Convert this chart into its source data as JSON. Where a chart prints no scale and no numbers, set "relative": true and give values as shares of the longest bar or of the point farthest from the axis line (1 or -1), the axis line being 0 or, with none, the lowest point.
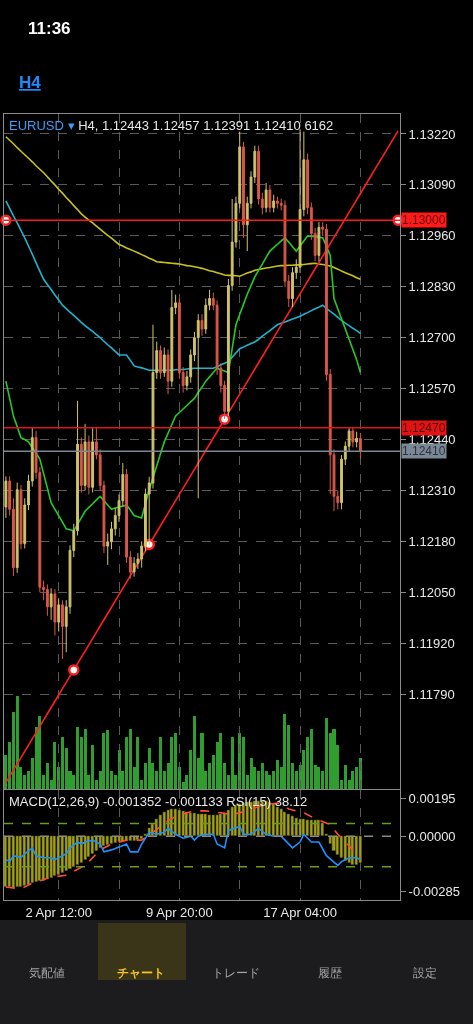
{
  "chart_data": [
    {
      "type": "candlestick",
      "title": "EURUSD ▾",
      "subtitle": "H4, 1.12443 1.12457 1.12391 1.12410 6162",
      "annotations": [
        "11:36",
        "H4",
        "気配値",
        "チャート",
        "トレード",
        "履歴",
        "設定"
      ],
      "categories": [
        null,
        null,
        null,
        null,
        null,
        null,
        null,
        null,
        null,
        null,
        null,
        null,
        null,
        null,
        null,
        null,
        null,
        null,
        null,
        null,
        null,
        null,
        null,
        null,
        null,
        null,
        null,
        null,
        null,
        null,
        null,
        null,
        null,
        null,
        null,
        null,
        null,
        null,
        null,
        null,
        null,
        null,
        null,
        null,
        null,
        null,
        null,
        null,
        null,
        null,
        null,
        null,
        null,
        null,
        null,
        null,
        null,
        null,
        null,
        null,
        null,
        null,
        null,
        null,
        null,
        null,
        null,
        null,
        null,
        null,
        null,
        null,
        null,
        null,
        null,
        null,
        null,
        null,
        null,
        null,
        null,
        null,
        null,
        null,
        null,
        null,
        null,
        null,
        null,
        null,
        null,
        null,
        null,
        null,
        null,
        null,
        null,
        null,
        null,
        null,
        null,
        null,
        null,
        null,
        null
      ],
      "ylim": [
        1.11548,
        1.13271
      ],
      "yticks": [
        {
          "value": 1.1322,
          "label": "1.13220"
        },
        {
          "value": 1.1309,
          "label": "1.13090"
        },
        {
          "value": 1.1296,
          "label": "1.12960"
        },
        {
          "value": 1.1283,
          "label": "1.12830"
        },
        {
          "value": 1.127,
          "label": "1.12700"
        },
        {
          "value": 1.1257,
          "label": "1.12570"
        },
        {
          "value": 1.1244,
          "label": "1.12440"
        },
        {
          "value": 1.1231,
          "label": "1.12310"
        },
        {
          "value": 1.1218,
          "label": "1.12180"
        },
        {
          "value": 1.1205,
          "label": "1.12050"
        },
        {
          "value": 1.1192,
          "label": "1.11920"
        },
        {
          "value": 1.1179,
          "label": "1.11790"
        }
      ],
      "grid": true,
      "tick_labels": "y",
      "colors": [
        "#cfc36b",
        "#d9574a",
        "#d9574a",
        "#cfc36b",
        "#d9574a",
        "#cfc36b",
        "#cfc36b",
        "#cfc36b",
        "#d9574a",
        "#d9574a",
        "#d9574a",
        "#d9574a",
        "#cfc36b",
        "#d9574a",
        "#cfc36b",
        "#d9574a",
        "#cfc36b",
        "#cfc36b",
        "#cfc36b",
        "#cfc36b",
        "#d9574a",
        "#cfc36b",
        "#d9574a",
        "#cfc36b",
        "#d9574a",
        "#d9574a",
        "#d9574a",
        "#cfc36b",
        "#cfc36b",
        "#cfc36b",
        "#cfc36b",
        "#cfc36b",
        "#d9574a",
        "#d9574a",
        "#cfc36b",
        "#cfc36b",
        "#cfc36b",
        "#cfc36b",
        "#cfc36b",
        "#cfc36b",
        "#cfc36b",
        "#d9574a",
        "#cfc36b",
        "#d9574a",
        "#cfc36b",
        "#cfc36b",
        "#d9574a",
        "#d9574a",
        "#cfc36b",
        "#cfc36b",
        "#cfc36b",
        "#cfc36b",
        "#d9574a",
        "#cfc36b",
        "#cfc36b",
        "#d9574a",
        "#d9574a",
        "#d9574a",
        "#d9574a",
        "#cfc36b",
        "#cfc36b",
        "#cfc36b",
        "#cfc36b",
        "#d9574a",
        "#cfc36b",
        "#cfc36b",
        "#cfc36b",
        "#d9574a",
        "#d9574a",
        "#cfc36b",
        "#d9574a",
        "#cfc36b",
        "#d9574a",
        "#d9574a",
        "#d9574a",
        "#d9574a",
        "#cfc36b",
        "#cfc36b",
        "#cfc36b",
        "#cfc36b",
        "#d9574a",
        "#d9574a",
        "#d9574a",
        "#cfc36b",
        "#d9574a",
        "#d9574a",
        "#d9574a",
        "#d9574a",
        "#d9574a",
        "#cfc36b",
        "#cfc36b",
        "#cfc36b",
        "#d9574a",
        "#cfc36b",
        "#d9574a",
        null,
        null,
        null,
        null,
        null,
        null,
        null,
        null,
        null,
        null
      ],
      "ohlc": [
        [
          1.12268,
          1.12346,
          1.1224,
          1.12334
        ],
        [
          1.12334,
          1.12346,
          1.12246,
          1.12262
        ],
        [
          1.12262,
          1.1229,
          1.12092,
          1.12113
        ],
        [
          1.12113,
          1.1233,
          1.121,
          1.12312
        ],
        [
          1.12312,
          1.12324,
          1.1216,
          1.12174
        ],
        [
          1.12174,
          1.1229,
          1.12162,
          1.12273
        ],
        [
          1.12273,
          1.1235,
          1.1226,
          1.12334
        ],
        [
          1.12334,
          1.1247,
          1.1232,
          1.12445
        ],
        [
          1.12445,
          1.12462,
          1.1234,
          1.12356
        ],
        [
          1.12356,
          1.1237,
          1.1205,
          1.12063
        ],
        [
          1.12063,
          1.1208,
          1.1203,
          1.12057
        ],
        [
          1.12057,
          1.1207,
          1.1199,
          1.12013
        ],
        [
          1.12013,
          1.1206,
          1.1198,
          1.12046
        ],
        [
          1.12046,
          1.12058,
          1.1194,
          1.11974
        ],
        [
          1.11974,
          1.12035,
          1.1195,
          1.12018
        ],
        [
          1.12018,
          1.1203,
          1.1188,
          1.11963
        ],
        [
          1.11963,
          1.1203,
          1.11897,
          1.12013
        ],
        [
          1.12013,
          1.1217,
          1.11995,
          1.12157
        ],
        [
          1.12157,
          1.12225,
          1.1214,
          1.12207
        ],
        [
          1.12207,
          1.12539,
          1.12195,
          1.12428
        ],
        [
          1.12428,
          1.12445,
          1.12305,
          1.12323
        ],
        [
          1.12323,
          1.1248,
          1.1231,
          1.12434
        ],
        [
          1.12434,
          1.1245,
          1.123,
          1.12318
        ],
        [
          1.12318,
          1.1247,
          1.12305,
          1.12434
        ],
        [
          1.12434,
          1.1247,
          1.1239,
          1.12401
        ],
        [
          1.12401,
          1.12415,
          1.1231,
          1.12323
        ],
        [
          1.12323,
          1.12335,
          1.1215,
          1.12168
        ],
        [
          1.12168,
          1.122,
          1.1212,
          1.12179
        ],
        [
          1.12179,
          1.1223,
          1.1216,
          1.12212
        ],
        [
          1.12212,
          1.12265,
          1.12195,
          1.12246
        ],
        [
          1.12246,
          1.123,
          1.1223,
          1.12284
        ],
        [
          1.12284,
          1.1238,
          1.1227,
          1.12351
        ],
        [
          1.12351,
          1.12365,
          1.12125,
          1.1214
        ],
        [
          1.1214,
          1.12155,
          1.12085,
          1.12102
        ],
        [
          1.12102,
          1.1214,
          1.1209,
          1.12124
        ],
        [
          1.12124,
          1.1215,
          1.1211,
          1.12135
        ],
        [
          1.12135,
          1.1218,
          1.12113,
          1.12168
        ],
        [
          1.12168,
          1.12315,
          1.12155,
          1.12301
        ],
        [
          1.12301,
          1.12345,
          1.12171,
          1.12329
        ],
        [
          1.12329,
          1.12733,
          1.12315,
          1.12611
        ],
        [
          1.12611,
          1.1269,
          1.12595,
          1.12667
        ],
        [
          1.12667,
          1.1268,
          1.12595,
          1.12611
        ],
        [
          1.12611,
          1.12675,
          1.126,
          1.12656
        ],
        [
          1.12656,
          1.1267,
          1.12556,
          1.12589
        ],
        [
          1.12589,
          1.12822,
          1.12575,
          1.12777
        ],
        [
          1.12777,
          1.1281,
          1.1276,
          1.12789
        ],
        [
          1.12789,
          1.128,
          1.12595,
          1.12611
        ],
        [
          1.12611,
          1.12625,
          1.1256,
          1.12578
        ],
        [
          1.12578,
          1.12615,
          1.12565,
          1.126
        ],
        [
          1.126,
          1.1267,
          1.12585,
          1.12656
        ],
        [
          1.12656,
          1.12715,
          1.1264,
          1.127
        ],
        [
          1.127,
          1.1276,
          1.1229,
          1.12744
        ],
        [
          1.12744,
          1.1276,
          1.12705,
          1.12722
        ],
        [
          1.12722,
          1.128,
          1.1271,
          1.12783
        ],
        [
          1.12783,
          1.12822,
          1.1277,
          1.128
        ],
        [
          1.128,
          1.12815,
          1.1277,
          1.12783
        ],
        [
          1.12783,
          1.12795,
          1.12605,
          1.12622
        ],
        [
          1.12622,
          1.12635,
          1.1256,
          1.12578
        ],
        [
          1.12578,
          1.1259,
          1.12493,
          1.12512
        ],
        [
          1.12512,
          1.1285,
          1.125,
          1.12833
        ],
        [
          1.12833,
          1.13054,
          1.1282,
          1.12944
        ],
        [
          1.12944,
          1.1306,
          1.1293,
          1.13043
        ],
        [
          1.13043,
          1.13226,
          1.1303,
          1.13187
        ],
        [
          1.13187,
          1.132,
          1.12955,
          1.12988
        ],
        [
          1.12988,
          1.1306,
          1.12921,
          1.13043
        ],
        [
          1.13043,
          1.13125,
          1.1303,
          1.1311
        ],
        [
          1.1311,
          1.1319,
          1.13095,
          1.13176
        ],
        [
          1.13176,
          1.1319,
          1.1304,
          1.13054
        ],
        [
          1.13054,
          1.1307,
          1.13015,
          1.13032
        ],
        [
          1.13032,
          1.13095,
          1.1302,
          1.13077
        ],
        [
          1.13077,
          1.1309,
          1.1302,
          1.13032
        ],
        [
          1.13032,
          1.13065,
          1.1302,
          1.13049
        ],
        [
          1.13049,
          1.1306,
          1.1303,
          1.13043
        ],
        [
          1.13043,
          1.13055,
          1.13025,
          1.13038
        ],
        [
          1.13038,
          1.1305,
          1.1283,
          1.12844
        ],
        [
          1.12844,
          1.1286,
          1.12778,
          1.128
        ],
        [
          1.128,
          1.1288,
          1.12778,
          1.12866
        ],
        [
          1.12866,
          1.129,
          1.1285,
          1.1288
        ],
        [
          1.1288,
          1.13232,
          1.12865,
          1.13027
        ],
        [
          1.13027,
          1.13226,
          1.1301,
          1.13154
        ],
        [
          1.13154,
          1.1317,
          1.13015,
          1.13032
        ],
        [
          1.13032,
          1.13045,
          1.1295,
          1.12966
        ],
        [
          1.12966,
          1.1298,
          1.12895,
          1.1291
        ],
        [
          1.1291,
          1.12995,
          1.12895,
          1.12982
        ],
        [
          1.12982,
          1.12995,
          1.1296,
          1.12977
        ],
        [
          1.12977,
          1.1299,
          1.1259,
          1.12606
        ],
        [
          1.12606,
          1.1262,
          1.12301,
          1.12401
        ],
        [
          1.12401,
          1.12415,
          1.12257,
          1.12295
        ],
        [
          1.12295,
          1.1231,
          1.12262,
          1.12279
        ],
        [
          1.12279,
          1.124,
          1.12262,
          1.1239
        ],
        [
          1.1239,
          1.12435,
          1.12375,
          1.12423
        ],
        [
          1.12423,
          1.12472,
          1.1241,
          1.12462
        ],
        [
          1.12462,
          1.12472,
          1.1242,
          1.12434
        ],
        [
          1.12434,
          1.1246,
          1.1242,
          1.12443
        ],
        [
          1.12443,
          1.12457,
          1.12391,
          1.1241
        ],
        null,
        null,
        null,
        null,
        null,
        null,
        null,
        null,
        null,
        null
      ],
      "series": [
        {
          "type": "line",
          "color": "#c8c21c",
          "values": [
            1.13213,
            1.13204,
            1.13195,
            1.13185,
            1.13176,
            1.13167,
            1.13158,
            1.13149,
            1.13139,
            1.1313,
            1.13121,
            1.13111,
            1.131,
            1.1309,
            1.13079,
            1.13069,
            1.13058,
            1.13048,
            1.13037,
            1.13027,
            1.13016,
            1.13008,
            1.13,
            1.12993,
            1.12985,
            1.12977,
            1.12969,
            1.12961,
            1.12954,
            1.12946,
            1.12938,
            1.12934,
            1.12929,
            1.12925,
            1.12921,
            1.12917,
            1.12912,
            1.12908,
            1.12903,
            1.12899,
            1.12894,
            1.12893,
            1.12892,
            1.12891,
            1.1289,
            1.12889,
            1.12888,
            1.12886,
            1.12884,
            1.12883,
            1.12881,
            1.12879,
            1.12877,
            1.12874,
            1.12871,
            1.12869,
            1.12866,
            1.12863,
            1.1286,
            1.12859,
            1.12859,
            1.12858,
            1.12857,
            1.12861,
            1.12865,
            1.12868,
            1.12872,
            1.12874,
            1.12876,
            1.12878,
            1.12879,
            1.12881,
            1.12883,
            1.12884,
            1.12884,
            1.12885,
            1.12885,
            1.12886,
            1.12886,
            1.12887,
            1.12888,
            1.12889,
            1.1289,
            1.12888,
            1.12887,
            1.12885,
            1.12883,
            1.12879,
            1.12875,
            1.1287,
            1.12866,
            1.12862,
            1.12858,
            1.12853,
            1.12849,
            null,
            null,
            null,
            null,
            null,
            null,
            null,
            null,
            null,
            null
          ]
        },
        {
          "type": "line",
          "color": "#1fb4cf",
          "values": [
            1.13049,
            1.1303,
            1.13011,
            1.12993,
            1.12974,
            1.12955,
            1.12934,
            1.12913,
            1.12891,
            1.1287,
            1.12849,
            1.12836,
            1.12823,
            1.12809,
            1.12796,
            1.12783,
            1.12774,
            1.12765,
            1.12757,
            1.12748,
            1.12739,
            1.12731,
            1.12723,
            1.12716,
            1.12708,
            1.127,
            1.12691,
            1.12682,
            1.12674,
            1.12665,
            1.12656,
            1.12656,
            1.12656,
            1.12642,
            1.12628,
            1.12625,
            1.12623,
            1.1262,
            1.12617,
            1.12617,
            1.12617,
            1.12617,
            1.12617,
            1.12617,
            1.12617,
            1.12618,
            1.12619,
            1.12619,
            1.1262,
            1.12621,
            1.12622,
            1.12622,
            1.12622,
            1.12622,
            1.12622,
            1.12622,
            1.12626,
            1.12631,
            1.12635,
            1.12639,
            1.1265,
            1.12661,
            1.12672,
            1.12676,
            1.12681,
            1.12685,
            1.12689,
            1.12696,
            1.12704,
            1.12711,
            1.12718,
            1.12726,
            1.12733,
            1.12737,
            1.1274,
            1.12744,
            1.12748,
            1.12751,
            1.12755,
            1.1276,
            1.12764,
            1.12769,
            1.12774,
            1.12778,
            1.12783,
            1.12775,
            1.12767,
            1.1276,
            1.12752,
            1.12744,
            1.12737,
            1.12731,
            1.12724,
            1.12718,
            1.12711,
            null,
            null,
            null,
            null,
            null,
            null,
            null,
            null,
            null,
            null
          ]
        },
        {
          "type": "line",
          "color": "#27c927",
          "values": [
            1.12589,
            1.12545,
            1.125,
            1.12473,
            1.12445,
            1.1244,
            1.12434,
            1.12419,
            1.12405,
            1.1239,
            1.12353,
            1.12316,
            1.12279,
            1.12262,
            1.12246,
            1.12229,
            1.12212,
            1.1221,
            1.12207,
            1.12224,
            1.1224,
            1.12257,
            1.12267,
            1.12276,
            1.12286,
            1.12295,
            1.12284,
            1.12273,
            1.12262,
            1.12265,
            1.12268,
            1.1227,
            1.12273,
            1.1226,
            1.12246,
            1.12243,
            1.1224,
            1.12276,
            1.12312,
            null,
            1.12373,
            1.12404,
            1.12434,
            1.12456,
            1.12478,
            1.125,
            1.12509,
            1.12518,
            1.12527,
            1.12536,
            1.12545,
            1.1256,
            1.12574,
            1.12589,
            1.126,
            1.12611,
            1.12622,
            1.12618,
            1.12615,
            1.12611,
            1.12672,
            1.12733,
            1.12759,
            1.12785,
            1.12811,
            1.12833,
            1.12855,
            1.12872,
            1.12888,
            1.12905,
            1.12921,
            1.1293,
            1.12938,
            1.12947,
            1.12955,
            1.12944,
            1.12932,
            1.12921,
            1.12934,
            1.12947,
            1.1296,
            1.12959,
            1.12958,
            1.12956,
            1.12955,
            1.12933,
            1.1291,
            1.128,
            1.12774,
            1.12748,
            1.12722,
            1.12696,
            1.1267,
            1.12644,
            1.12611,
            null,
            null,
            null,
            null,
            null,
            null,
            null,
            null,
            null,
            null
          ]
        },
        {
          "type": "line",
          "color": "#ff1f1f",
          "values": [
            1.11564,
            1.1158,
            1.11596,
            1.11612,
            1.11628,
            1.11644,
            1.1166,
            1.11676,
            1.11692,
            1.11708,
            1.11724,
            1.1174,
            1.11756,
            1.11772,
            1.11788,
            1.11804,
            1.1182,
            1.11836,
            1.11852,
            1.11868,
            1.11884,
            1.119,
            1.11916,
            1.11932,
            1.11948,
            1.11964,
            1.1198,
            1.11996,
            1.12012,
            1.12028,
            1.12044,
            1.1206,
            1.12076,
            1.12092,
            1.12108,
            1.12124,
            1.1214,
            1.12156,
            1.12172,
            1.12188,
            1.12204,
            1.1222,
            1.12236,
            1.12252,
            1.12268,
            1.12284,
            1.123,
            1.12316,
            1.12332,
            1.12348,
            1.12364,
            1.1238,
            1.12396,
            1.12412,
            1.12428,
            1.12444,
            1.1246,
            1.12476,
            1.12492,
            1.12508,
            1.12524,
            1.1254,
            1.12556,
            1.12572,
            1.12588,
            1.12604,
            1.1262,
            1.12636,
            1.12652,
            1.12668,
            1.12684,
            1.127,
            1.12716,
            1.12732,
            1.12748,
            1.12764,
            1.1278,
            1.12796,
            1.12812,
            1.12828,
            1.12844,
            1.1286,
            1.12876,
            1.12892,
            1.12908,
            1.12924,
            1.1294,
            1.12956,
            1.12972,
            1.12988,
            1.13004,
            1.1302,
            1.13036,
            1.13052,
            1.13068,
            1.13084,
            1.131,
            1.13116,
            1.13132,
            1.13148,
            1.13164,
            1.1318,
            1.13196,
            1.13212,
            1.13228
          ]
        },
        {
          "type": "scatter",
          "marker": "circle",
          "color": "#ff1f1f",
          "values": [
            1.13,
            null,
            null,
            null,
            null,
            null,
            null,
            null,
            null,
            null,
            null,
            null,
            null,
            null,
            null,
            null,
            null,
            null,
            1.11852,
            null,
            null,
            null,
            null,
            null,
            null,
            null,
            null,
            null,
            null,
            null,
            null,
            null,
            null,
            null,
            null,
            null,
            null,
            null,
            1.12172,
            null,
            null,
            null,
            null,
            null,
            null,
            null,
            null,
            null,
            null,
            null,
            null,
            null,
            null,
            null,
            null,
            null,
            null,
            null,
            1.12492,
            null,
            null,
            null,
            null,
            null,
            null,
            null,
            null,
            null,
            null,
            null,
            null,
            null,
            null,
            null,
            null,
            null,
            null,
            null,
            null,
            null,
            null,
            null,
            null,
            null,
            null,
            null,
            null,
            null,
            null,
            null,
            null,
            null,
            null,
            null,
            null,
            null,
            null,
            null,
            null,
            null,
            null,
            null,
            null,
            null,
            1.13
          ]
        }
      ],
      "ref_lines": [
        {
          "axis": "y",
          "value": 1.13,
          "label": "1.13000",
          "color": "#ff1a1a"
        },
        {
          "axis": "y",
          "value": 1.1247,
          "label": "1.12470",
          "color": "#e01414"
        },
        {
          "axis": "y",
          "value": 1.1241,
          "label": "1.12410",
          "color": "#7a8896"
        }
      ]
    },
    {
      "type": "bar",
      "relative": true,
      "tick_labels": false,
      "color": "#2f9e2f",
      "categories": [
        null,
        null,
        null,
        null,
        null,
        null,
        null,
        null,
        null,
        null,
        null,
        null,
        null,
        null,
        null,
        null,
        null,
        null,
        null,
        null,
        null,
        null,
        null,
        null,
        null,
        null,
        null,
        null,
        null,
        null,
        null,
        null,
        null,
        null,
        null,
        null,
        null,
        null,
        null,
        null,
        null,
        null,
        null,
        null,
        null,
        null,
        null,
        null,
        null,
        null,
        null,
        null,
        null,
        null,
        null,
        null,
        null,
        null,
        null,
        null,
        null,
        null,
        null,
        null,
        null,
        null,
        null,
        null,
        null,
        null,
        null,
        null,
        null,
        null,
        null,
        null,
        null,
        null,
        null,
        null,
        null,
        null,
        null,
        null,
        null,
        null,
        null,
        null,
        null,
        null,
        null,
        null,
        null,
        null,
        null,
        null,
        null,
        null,
        null,
        null,
        null,
        null,
        null,
        null,
        null
      ],
      "values": [
        0.37,
        0.51,
        0.83,
        1,
        0.24,
        0.15,
        0.19,
        0.33,
        0.67,
        0.79,
        0.15,
        0.28,
        0.1,
        0.51,
        0.24,
        0.56,
        0.44,
        0.19,
        0.15,
        0.67,
        0.56,
        0.65,
        0.15,
        0.47,
        0.1,
        0.19,
        0.6,
        0.63,
        0.19,
        0.15,
        0.42,
        0.19,
        0.56,
        0.65,
        0.24,
        0.56,
        0.1,
        0.28,
        0.44,
        0.28,
        0.19,
        0.56,
        0.19,
        0.28,
        0.56,
        0.6,
        0.24,
        0.08,
        0.15,
        0.42,
        0.79,
        0.33,
        0.6,
        0.19,
        0.28,
        0.37,
        0.51,
        0.6,
        0.28,
        0.15,
        0.56,
        0.15,
        0.6,
        0.56,
        0.15,
        0.33,
        0.24,
        0.19,
        0.28,
        0.19,
        0.15,
        0.19,
        0.31,
        0.24,
        0.81,
        0.69,
        0.28,
        0.19,
        0.26,
        0.42,
        0.56,
        0.65,
        0.26,
        0.24,
        0.19,
        0.76,
        0.6,
        0.65,
        0.47,
        0.1,
        0.26,
        0.1,
        0.19,
        0.24,
        0.33,
        null,
        null,
        null,
        null,
        null,
        null,
        null,
        null,
        null,
        null
      ]
    },
    {
      "type": "bar",
      "title": "MACD(12,26,9) -0.001352 -0.001133 RSI(15) 38.12",
      "color": "#a19f18",
      "categories": [
        null,
        null,
        null,
        null,
        null,
        null,
        null,
        null,
        null,
        null,
        null,
        null,
        null,
        null,
        "2 Apr 12:00",
        null,
        null,
        null,
        null,
        null,
        null,
        null,
        null,
        null,
        null,
        null,
        null,
        null,
        null,
        null,
        null,
        null,
        null,
        null,
        null,
        null,
        null,
        null,
        null,
        null,
        null,
        null,
        null,
        null,
        null,
        null,
        "9 Apr 20:00",
        null,
        null,
        null,
        null,
        null,
        null,
        null,
        null,
        null,
        null,
        null,
        null,
        null,
        null,
        null,
        null,
        null,
        null,
        null,
        null,
        null,
        null,
        null,
        null,
        null,
        null,
        null,
        null,
        null,
        null,
        null,
        "17 Apr 04:00",
        null,
        null,
        null,
        null,
        null,
        null,
        null,
        null,
        null,
        null,
        null,
        null,
        null,
        null,
        null,
        null,
        null,
        null,
        null,
        null,
        null,
        null,
        null,
        null,
        null,
        null
      ],
      "ylim": [
        -0.00327,
        0.00237
      ],
      "yticks": [
        0.00195,
        {
          "value": 0,
          "label": "0.00000"
        },
        -0.00285
      ],
      "grid": "x",
      "values": [
        -0.0026,
        -0.00262,
        -0.00265,
        -0.00262,
        -0.00258,
        -0.00255,
        -0.00248,
        -0.0024,
        -0.00236,
        -0.00232,
        -0.00228,
        -0.0022,
        -0.00212,
        -0.00206,
        -0.002,
        -0.0019,
        -0.00178,
        -0.00168,
        -0.0016,
        -0.00148,
        -0.00136,
        -0.00122,
        -0.00105,
        -0.0009,
        -0.00075,
        -0.00062,
        -0.00052,
        -0.00044,
        -0.00038,
        -0.00034,
        -0.0003,
        -0.00028,
        -0.00027,
        -0.00026,
        -0.00025,
        -0.0002,
        -0.00012,
        0.0001,
        0.0004,
        0.00065,
        0.0009,
        0.00108,
        0.00122,
        0.00135,
        0.00142,
        0.0014,
        0.00134,
        0.00128,
        0.00124,
        0.0012,
        0.00118,
        0.00116,
        0.00114,
        0.00112,
        0.0011,
        0.00108,
        0.00108,
        0.00112,
        0.0012,
        0.00135,
        0.0015,
        0.00158,
        0.00165,
        0.0017,
        0.00174,
        0.00177,
        0.00179,
        0.0018,
        0.0018,
        0.00179,
        0.00176,
        0.00165,
        0.0015,
        0.00138,
        0.00125,
        0.00112,
        0.00102,
        0.00095,
        0.0009,
        0.00086,
        0.00085,
        0.00084,
        0.00084,
        0.00082,
        0.0007,
        0.0001,
        -0.0004,
        -0.00075,
        -0.00098,
        -0.00112,
        -0.00125,
        -0.00135,
        -0.00145,
        -0.00148,
        -0.00135,
        null,
        null,
        null,
        null,
        null,
        null,
        null,
        null,
        null,
        null
      ],
      "series": [
        {
          "type": "line",
          "color": "#ff4b3a",
          "line_style": "dashed",
          "values": [
            -0.0026,
            null,
            null,
            null,
            -0.0027,
            null,
            null,
            -0.0024,
            null,
            null,
            null,
            null,
            -0.0021,
            null,
            null,
            null,
            -0.002,
            null,
            null,
            null,
            -0.0016,
            null,
            -0.0013,
            null,
            null,
            -0.0007,
            null,
            null,
            -0.0004,
            null,
            null,
            null,
            -0.0002,
            null,
            null,
            null,
            -0.0002,
            null,
            null,
            0.0002,
            null,
            null,
            null,
            0.0008,
            null,
            null,
            0.0011,
            null,
            null,
            null,
            0.0013,
            null,
            null,
            0.0013,
            null,
            null,
            null,
            0.0012,
            null,
            null,
            0.0011,
            null,
            null,
            null,
            0.0013,
            null,
            null,
            null,
            0.0016,
            null,
            null,
            null,
            0.0017,
            null,
            null,
            0.0014,
            null,
            null,
            null,
            0.0012,
            null,
            null,
            0.0009,
            null,
            null,
            null,
            0.0006,
            null,
            0.0001,
            null,
            null,
            -0.0005,
            null,
            null,
            -0.0011,
            null,
            null,
            null,
            null,
            null,
            null,
            null,
            null,
            null,
            null
          ]
        },
        {
          "type": "line",
          "color": "#1e90ff",
          "values": [
            -0.0012,
            -0.0013,
            -0.001,
            null,
            -0.0011,
            -0.0009,
            null,
            -0.0006,
            -0.001,
            null,
            -0.0011,
            null,
            -0.0011,
            -0.0012,
            -0.0011,
            null,
            -0.0009,
            -0.0006,
            null,
            -0.0003,
            -0.0004,
            -0.0003,
            null,
            -0.0002,
            null,
            -0.0004,
            -0.0008,
            null,
            -0.0007,
            null,
            null,
            null,
            -0.0004,
            -0.0008,
            null,
            -0.0008,
            -0.0004,
            null,
            0.0002,
            null,
            0.0001,
            null,
            0.0002,
            0.0004,
            null,
            0.0001,
            null,
            -0.0001,
            null,
            0,
            -0.0002,
            0,
            null,
            0.0001,
            null,
            0.0001,
            -0.0004,
            null,
            -0.0006,
            0.0003,
            null,
            null,
            0.0005,
            0.0001,
            null,
            0.0001,
            null,
            0.0004,
            null,
            0.0001,
            null,
            0,
            null,
            0,
            -0.0002,
            null,
            -0.0006,
            null,
            -0.0003,
            0.0001,
            null,
            -0.0003,
            null,
            -0.0003,
            null,
            -0.001,
            null,
            null,
            -0.0015,
            -0.0013,
            null,
            -0.0011,
            null,
            -0.0011,
            -0.0012,
            null,
            null,
            null,
            null,
            null,
            null,
            null,
            null,
            null,
            null
          ]
        }
      ],
      "ref_lines": [
        {
          "axis": "y",
          "value": 0.00065,
          "color": "#6a9c1c",
          "line_style": "dashed"
        },
        {
          "axis": "y",
          "value": -0.00156,
          "color": "#6a9c1c",
          "line_style": "dashed"
        },
        {
          "axis": "y",
          "value": 0,
          "color": "#8a8a8a",
          "line_style": "dashed"
        }
      ]
    }
  ]
}
